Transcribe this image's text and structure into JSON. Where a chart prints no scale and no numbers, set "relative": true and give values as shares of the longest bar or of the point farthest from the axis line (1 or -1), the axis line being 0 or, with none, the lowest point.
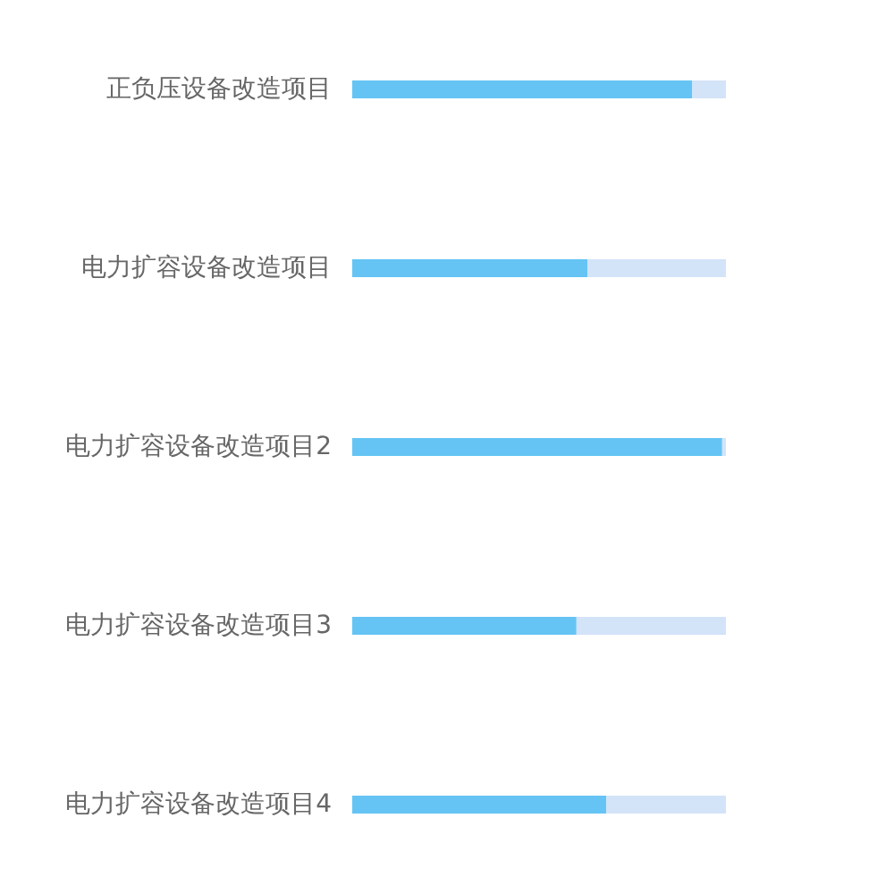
{
  "chart_data": {
    "type": "bar",
    "orientation": "horizontal",
    "stacked": true,
    "relative": true,
    "categories": [
      "正负压设备改造项目",
      "电力扩容设备改造项目",
      "电力扩容设备改造项目2",
      "电力扩容设备改造项目3",
      "电力扩容设备改造项目4"
    ],
    "series": [
      {
        "color": "#65c4f4",
        "values": [
          0.91,
          0.63,
          0.99,
          0.6,
          0.68
        ]
      },
      {
        "color": "#d3e3f8",
        "values": [
          0.09,
          0.37,
          0.01,
          0.4,
          0.32
        ]
      }
    ]
  }
}
